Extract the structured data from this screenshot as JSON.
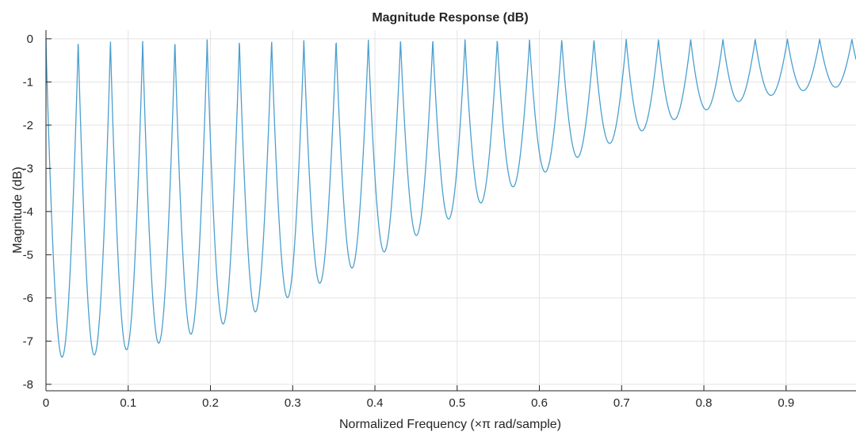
{
  "chart_data": {
    "type": "line",
    "title": "Magnitude Response (dB)",
    "xlabel": "Normalized Frequency  (×π rad/sample)",
    "ylabel": "Magnitude (dB)",
    "xlim": [
      0,
      0.985
    ],
    "ylim": [
      -8.15,
      0.2
    ],
    "grid": true,
    "x_ticks": [
      0,
      0.1,
      0.2,
      0.3,
      0.4,
      0.5,
      0.6,
      0.7,
      0.8,
      0.9
    ],
    "x_tick_labels": [
      "0",
      "0.1",
      "0.2",
      "0.3",
      "0.4",
      "0.5",
      "0.6",
      "0.7",
      "0.8",
      "0.9"
    ],
    "y_ticks": [
      0,
      -1,
      -2,
      -3,
      -4,
      -5,
      -6,
      -7,
      -8
    ],
    "y_tick_labels": [
      "0",
      "-1",
      "-2",
      "-3",
      "-4",
      "-5",
      "-6",
      "-7",
      "-8"
    ],
    "series": [
      {
        "color": "#4b9fcf",
        "lobe_spacing": 0.0392,
        "peaks_db": 0,
        "troughs": [
          {
            "x": 0.02,
            "y": -7.37
          },
          {
            "x": 0.059,
            "y": -7.32
          },
          {
            "x": 0.098,
            "y": -7.2
          },
          {
            "x": 0.137,
            "y": -7.05
          },
          {
            "x": 0.176,
            "y": -6.84
          },
          {
            "x": 0.216,
            "y": -6.6
          },
          {
            "x": 0.255,
            "y": -6.32
          },
          {
            "x": 0.294,
            "y": -5.99
          },
          {
            "x": 0.333,
            "y": -5.66
          },
          {
            "x": 0.372,
            "y": -5.31
          },
          {
            "x": 0.412,
            "y": -4.93
          },
          {
            "x": 0.451,
            "y": -4.55
          },
          {
            "x": 0.49,
            "y": -4.17
          },
          {
            "x": 0.529,
            "y": -3.8
          },
          {
            "x": 0.568,
            "y": -3.43
          },
          {
            "x": 0.608,
            "y": -3.08
          },
          {
            "x": 0.647,
            "y": -2.74
          },
          {
            "x": 0.686,
            "y": -2.42
          },
          {
            "x": 0.725,
            "y": -2.13
          },
          {
            "x": 0.764,
            "y": -1.87
          },
          {
            "x": 0.804,
            "y": -1.64
          },
          {
            "x": 0.843,
            "y": -1.45
          },
          {
            "x": 0.882,
            "y": -1.31
          },
          {
            "x": 0.921,
            "y": -1.2
          },
          {
            "x": 0.96,
            "y": -1.12
          }
        ]
      }
    ]
  }
}
